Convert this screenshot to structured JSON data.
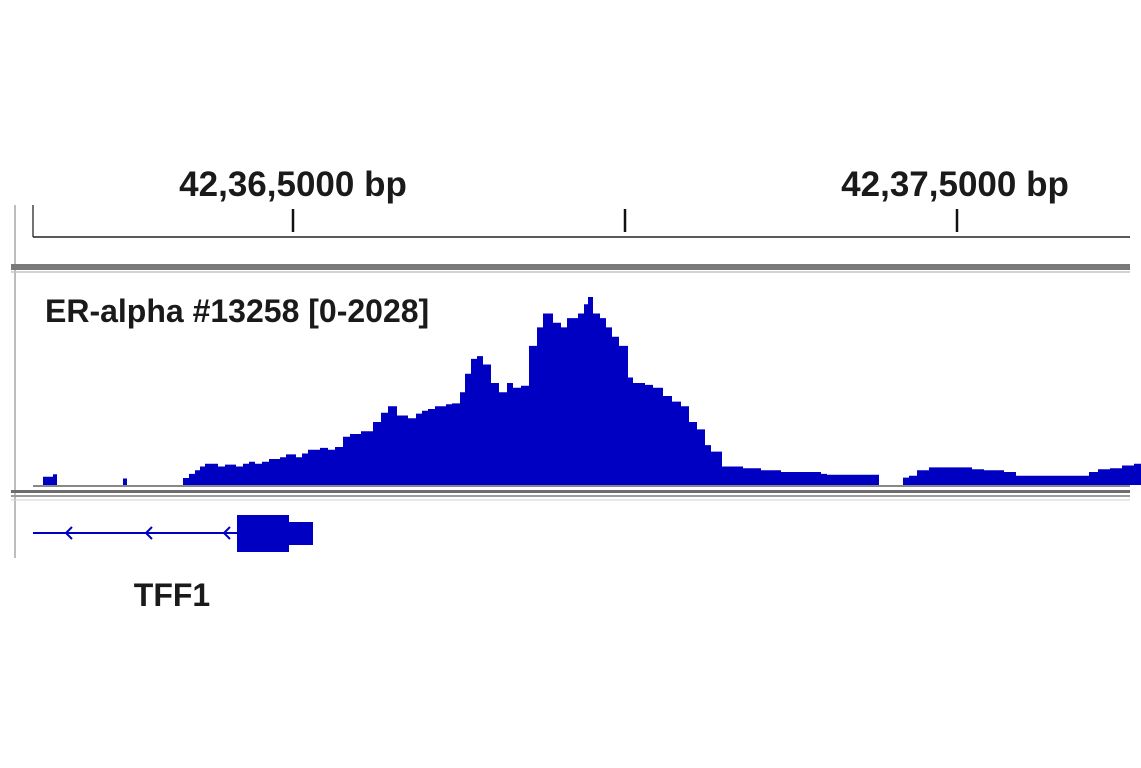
{
  "ruler": {
    "tick_labels": [
      "42,36,5000 bp",
      "42,37,5000 bp"
    ]
  },
  "track": {
    "label": "ER-alpha #13258 [0-2028]",
    "color": "#0000c2"
  },
  "gene": {
    "name": "TFF1",
    "color": "#0000c2"
  },
  "chart_data": {
    "type": "area",
    "title": "",
    "xlabel": "",
    "ylabel": "",
    "data_range": [
      0,
      2028
    ],
    "ylim": [
      0,
      2028
    ],
    "x_axis_labels": [
      "42,36,5000 bp",
      "42,37,5000 bp"
    ],
    "x_bin_step": 1,
    "x_start": 0,
    "series": [
      {
        "values": [
          90,
          90,
          90,
          90,
          90,
          90,
          90,
          90,
          90,
          90,
          115,
          115,
          115,
          115,
          0,
          0,
          0,
          0,
          0,
          0,
          0,
          0,
          0,
          0,
          0,
          0,
          0,
          0,
          0,
          0,
          0,
          0,
          0,
          0,
          0,
          0,
          0,
          0,
          0,
          0,
          0,
          0,
          0,
          0,
          0,
          0,
          0,
          0,
          0,
          0,
          0,
          0,
          0,
          0,
          0,
          0,
          0,
          0,
          0,
          0,
          0,
          0,
          0,
          0,
          0,
          0,
          0,
          0,
          0,
          0,
          0,
          0,
          0,
          0,
          0,
          0,
          0,
          0,
          0,
          0,
          70,
          70,
          70,
          70,
          0,
          0,
          0,
          0,
          0,
          0,
          0,
          0,
          0,
          0,
          0,
          0,
          0,
          0,
          0,
          0,
          0,
          0,
          0,
          0,
          0,
          0,
          0,
          0,
          0,
          0,
          0,
          0,
          0,
          0,
          0,
          0,
          0,
          0,
          0,
          0,
          0,
          0,
          0,
          0,
          0,
          0,
          0,
          0,
          0,
          0,
          0,
          0,
          0,
          0,
          0,
          0,
          0,
          0,
          0,
          0,
          75,
          75,
          75,
          75,
          75,
          75,
          120,
          120,
          120,
          120,
          120,
          120,
          160,
          160,
          160,
          160,
          160,
          200,
          200,
          200,
          200,
          200,
          230,
          230,
          230,
          230,
          230,
          230,
          230,
          230,
          230,
          230,
          230,
          230,
          230,
          200,
          200,
          200,
          200,
          200,
          200,
          200,
          220,
          220,
          220,
          220,
          220,
          220,
          220,
          220,
          220,
          220,
          220,
          200,
          200,
          200,
          200,
          200,
          200,
          200,
          230,
          230,
          230,
          230,
          230,
          230,
          250,
          250,
          250,
          250,
          250,
          250,
          230,
          230,
          230,
          230,
          230,
          230,
          230,
          250,
          250,
          250,
          250,
          250,
          250,
          250,
          280,
          280,
          280,
          280,
          280,
          280,
          280,
          280,
          280,
          280,
          280,
          300,
          300,
          300,
          300,
          300,
          300,
          330,
          330,
          330,
          330,
          330,
          330,
          330,
          330,
          330,
          330,
          300,
          300,
          300,
          300,
          300,
          300,
          340,
          340,
          340,
          340,
          340,
          340,
          380,
          380,
          380,
          380,
          380,
          380,
          380,
          380,
          380,
          380,
          380,
          380,
          400,
          400,
          400,
          400,
          400,
          400,
          400,
          400,
          380,
          380,
          380,
          380,
          380,
          380,
          380,
          410,
          410,
          410,
          410,
          410,
          410,
          410,
          410,
          520,
          520,
          520,
          520,
          520,
          520,
          520,
          550,
          550,
          550,
          550,
          550,
          550,
          550,
          550,
          550,
          550,
          550,
          580,
          580,
          580,
          580,
          580,
          580,
          580,
          580,
          580,
          580,
          580,
          580,
          680,
          680,
          680,
          680,
          680,
          680,
          680,
          680,
          780,
          780,
          780,
          780,
          780,
          780,
          780,
          850,
          850,
          850,
          850,
          850,
          850,
          850,
          850,
          850,
          750,
          750,
          750,
          750,
          750,
          750,
          750,
          750,
          750,
          750,
          750,
          720,
          720,
          720,
          720,
          720,
          720,
          720,
          720,
          770,
          770,
          770,
          770,
          770,
          770,
          800,
          800,
          800,
          800,
          800,
          800,
          820,
          820,
          820,
          820,
          820,
          820,
          820,
          850,
          850,
          850,
          850,
          850,
          850,
          850,
          850,
          850,
          850,
          850,
          870,
          870,
          870,
          870,
          870,
          870,
          880,
          880,
          880,
          880,
          880,
          880,
          880,
          880,
          1000,
          1000,
          1000,
          1000,
          1000,
          1200,
          1200,
          1200,
          1200,
          1200,
          1200,
          1360,
          1360,
          1360,
          1360,
          1360,
          1360,
          1390,
          1390,
          1390,
          1390,
          1390,
          1390,
          1300,
          1300,
          1300,
          1300,
          1300,
          1300,
          1300,
          1300,
          1100,
          1100,
          1100,
          1100,
          1100,
          1100,
          1100,
          1100,
          1000,
          1000,
          1000,
          1000,
          1000,
          1000,
          1000,
          1000,
          1100,
          1100,
          1100,
          1100,
          1100,
          1100,
          1050,
          1050,
          1050,
          1050,
          1050,
          1050,
          1050,
          1050,
          1070,
          1070,
          1070,
          1070,
          1070,
          1070,
          1070,
          1070,
          1500,
          1500,
          1500,
          1500,
          1500,
          1500,
          1500,
          1500,
          1700,
          1700,
          1700,
          1700,
          1700,
          1700,
          1850,
          1850,
          1850,
          1850,
          1850,
          1850,
          1850,
          1850,
          1850,
          1850,
          1750,
          1750,
          1750,
          1750,
          1750,
          1750,
          1750,
          1750,
          1700,
          1700,
          1700,
          1700,
          1700,
          1700,
          1800,
          1800,
          1800,
          1800,
          1800,
          1800,
          1800,
          1800,
          1800,
          1800,
          1800,
          1850,
          1850,
          1850,
          1850,
          1850,
          1850,
          1950,
          1950,
          1950,
          1950,
          2028,
          2028,
          2028,
          2028,
          2028,
          1850,
          1850,
          1850,
          1850,
          1850,
          1850,
          1850,
          1800,
          1800,
          1800,
          1800,
          1800,
          1800,
          1700,
          1700,
          1700,
          1700,
          1700,
          1700,
          1600,
          1600,
          1600,
          1600,
          1600,
          1600,
          1600,
          1500,
          1500,
          1500,
          1500,
          1500,
          1500,
          1500,
          1500,
          1500,
          1160,
          1160,
          1160,
          1160,
          1160,
          1100,
          1100,
          1100,
          1100,
          1100,
          1100,
          1100,
          1100,
          1100,
          1100,
          1100,
          1100,
          1080,
          1080,
          1080,
          1080,
          1080,
          1080,
          1080,
          1080,
          1050,
          1050,
          1050,
          1050,
          1050,
          1050,
          1050,
          1050,
          1050,
          1050,
          960,
          960,
          960,
          960,
          960,
          960,
          960,
          960,
          960,
          900,
          900,
          900,
          900,
          900,
          900,
          900,
          900,
          900,
          850,
          850,
          850,
          850,
          850,
          850,
          850,
          850,
          680,
          680,
          680,
          680,
          680,
          680,
          680,
          680,
          600,
          600,
          600,
          600,
          600,
          600,
          600,
          600,
          430,
          430,
          430,
          430,
          430,
          430,
          360,
          360,
          360,
          360,
          360,
          360,
          360,
          360,
          360,
          360,
          360,
          200,
          200,
          200,
          200,
          200,
          200,
          200,
          200,
          200,
          200,
          200,
          200,
          200,
          200,
          200,
          200,
          200,
          200,
          200,
          200,
          200,
          180,
          180,
          180,
          180,
          180,
          180,
          180,
          180,
          180,
          180,
          180,
          180,
          180,
          180,
          180,
          180,
          180,
          180,
          160,
          160,
          160,
          160,
          160,
          160,
          160,
          160,
          160,
          160,
          160,
          160,
          160,
          160,
          160,
          160,
          160,
          160,
          160,
          160,
          140,
          140,
          140,
          140,
          140,
          140,
          140,
          140,
          140,
          140,
          140,
          140,
          140,
          140,
          140,
          140,
          140,
          140,
          140,
          140,
          140,
          140,
          140,
          140,
          140,
          140,
          140,
          140,
          140,
          140,
          140,
          140,
          140,
          140,
          140,
          140,
          140,
          140,
          140,
          140,
          120,
          120,
          120,
          120,
          120,
          120,
          110,
          110,
          110,
          110,
          110,
          110,
          110,
          110,
          110,
          110,
          110,
          110,
          110,
          110,
          110,
          110,
          110,
          110,
          110,
          110,
          110,
          110,
          110,
          110,
          110,
          110,
          110,
          110,
          110,
          110,
          110,
          110,
          110,
          110,
          110,
          110,
          110,
          110,
          110,
          110,
          110,
          110,
          110,
          110,
          110,
          110,
          110,
          110,
          110,
          110,
          110,
          110,
          0,
          0,
          0,
          0,
          0,
          0,
          0,
          0,
          0,
          0,
          0,
          0,
          0,
          0,
          0,
          0,
          0,
          0,
          0,
          0,
          0,
          0,
          0,
          0,
          80,
          80,
          80,
          80,
          80,
          80,
          100,
          100,
          100,
          100,
          100,
          100,
          100,
          100,
          160,
          160,
          160,
          160,
          160,
          160,
          160,
          160,
          160,
          160,
          160,
          160,
          190,
          190,
          190,
          190,
          190,
          190,
          190,
          190,
          190,
          190,
          190,
          190,
          190,
          190,
          190,
          190,
          190,
          190,
          190,
          190,
          190,
          190,
          190,
          190,
          190,
          190,
          190,
          190,
          190,
          190,
          190,
          190,
          190,
          190,
          190,
          190,
          190,
          190,
          190,
          190,
          190,
          190,
          190,
          170,
          170,
          170,
          170,
          170,
          170,
          170,
          170,
          170,
          170,
          170,
          170,
          160,
          160,
          160,
          160,
          160,
          160,
          160,
          160,
          160,
          160,
          160,
          160,
          160,
          160,
          160,
          160,
          160,
          160,
          160,
          160,
          140,
          140,
          140,
          140,
          140,
          140,
          140,
          140,
          140,
          140,
          140,
          140,
          100,
          100,
          100,
          100,
          100,
          100,
          100,
          100,
          100,
          100,
          100,
          100,
          100,
          100,
          100,
          100,
          100,
          100,
          100,
          100,
          100,
          100,
          100,
          100,
          100,
          100,
          100,
          100,
          100,
          100,
          100,
          100,
          100,
          100,
          100,
          100,
          100,
          100,
          100,
          100,
          100,
          100,
          100,
          100,
          100,
          100,
          100,
          100,
          100,
          100,
          100,
          100,
          100,
          100,
          100,
          100,
          100,
          100,
          100,
          100,
          100,
          100,
          100,
          100,
          100,
          100,
          100,
          100,
          100,
          100,
          100,
          100,
          100,
          140,
          140,
          140,
          140,
          140,
          140,
          140,
          140,
          140,
          170,
          170,
          170,
          170,
          170,
          170,
          170,
          170,
          170,
          170,
          170,
          170,
          180,
          180,
          180,
          180,
          180,
          180,
          180,
          180,
          180,
          180,
          180,
          180,
          210,
          210,
          210,
          210,
          210,
          210,
          210,
          210,
          210,
          210,
          210,
          210,
          230,
          230,
          230,
          230,
          230,
          230,
          230,
          230,
          230,
          230,
          230,
          230,
          230,
          230,
          230,
          230,
          230,
          230,
          230,
          230,
          200,
          200,
          200,
          200,
          200,
          200,
          200,
          200,
          200,
          200,
          200,
          200,
          200,
          200,
          180,
          180,
          180,
          180,
          180,
          180,
          180,
          180,
          180,
          180,
          180,
          180,
          160,
          160,
          160,
          160,
          160,
          160,
          140,
          140,
          140,
          140,
          140,
          140,
          140,
          140,
          140,
          140,
          140,
          140,
          140,
          140,
          140,
          140,
          140,
          140,
          140,
          140,
          140,
          140,
          100,
          100,
          100,
          100,
          100,
          100,
          100,
          100,
          100,
          0,
          0,
          0,
          0,
          0,
          0,
          0,
          0,
          0,
          0,
          0,
          0,
          0,
          0,
          0,
          0,
          0,
          0,
          0,
          0,
          0,
          0,
          0,
          0,
          0,
          0,
          0,
          0,
          0,
          0,
          0,
          0,
          0,
          0,
          0,
          0,
          0,
          0,
          0,
          0,
          0,
          0,
          0,
          0,
          0,
          0,
          0,
          0,
          0,
          0,
          0,
          60,
          60,
          60,
          60,
          60,
          60,
          110,
          110,
          110,
          110,
          110,
          110,
          110,
          110,
          110,
          110,
          110,
          110,
          80,
          80,
          80,
          80,
          80,
          80,
          80,
          80,
          80,
          80,
          80,
          80,
          80,
          80,
          80,
          80,
          80,
          80,
          80,
          80,
          80,
          80,
          80,
          80,
          80,
          80,
          80,
          80,
          80,
          80,
          80,
          80,
          80,
          80,
          80,
          80
        ]
      }
    ],
    "grid": false,
    "legend": "none"
  }
}
